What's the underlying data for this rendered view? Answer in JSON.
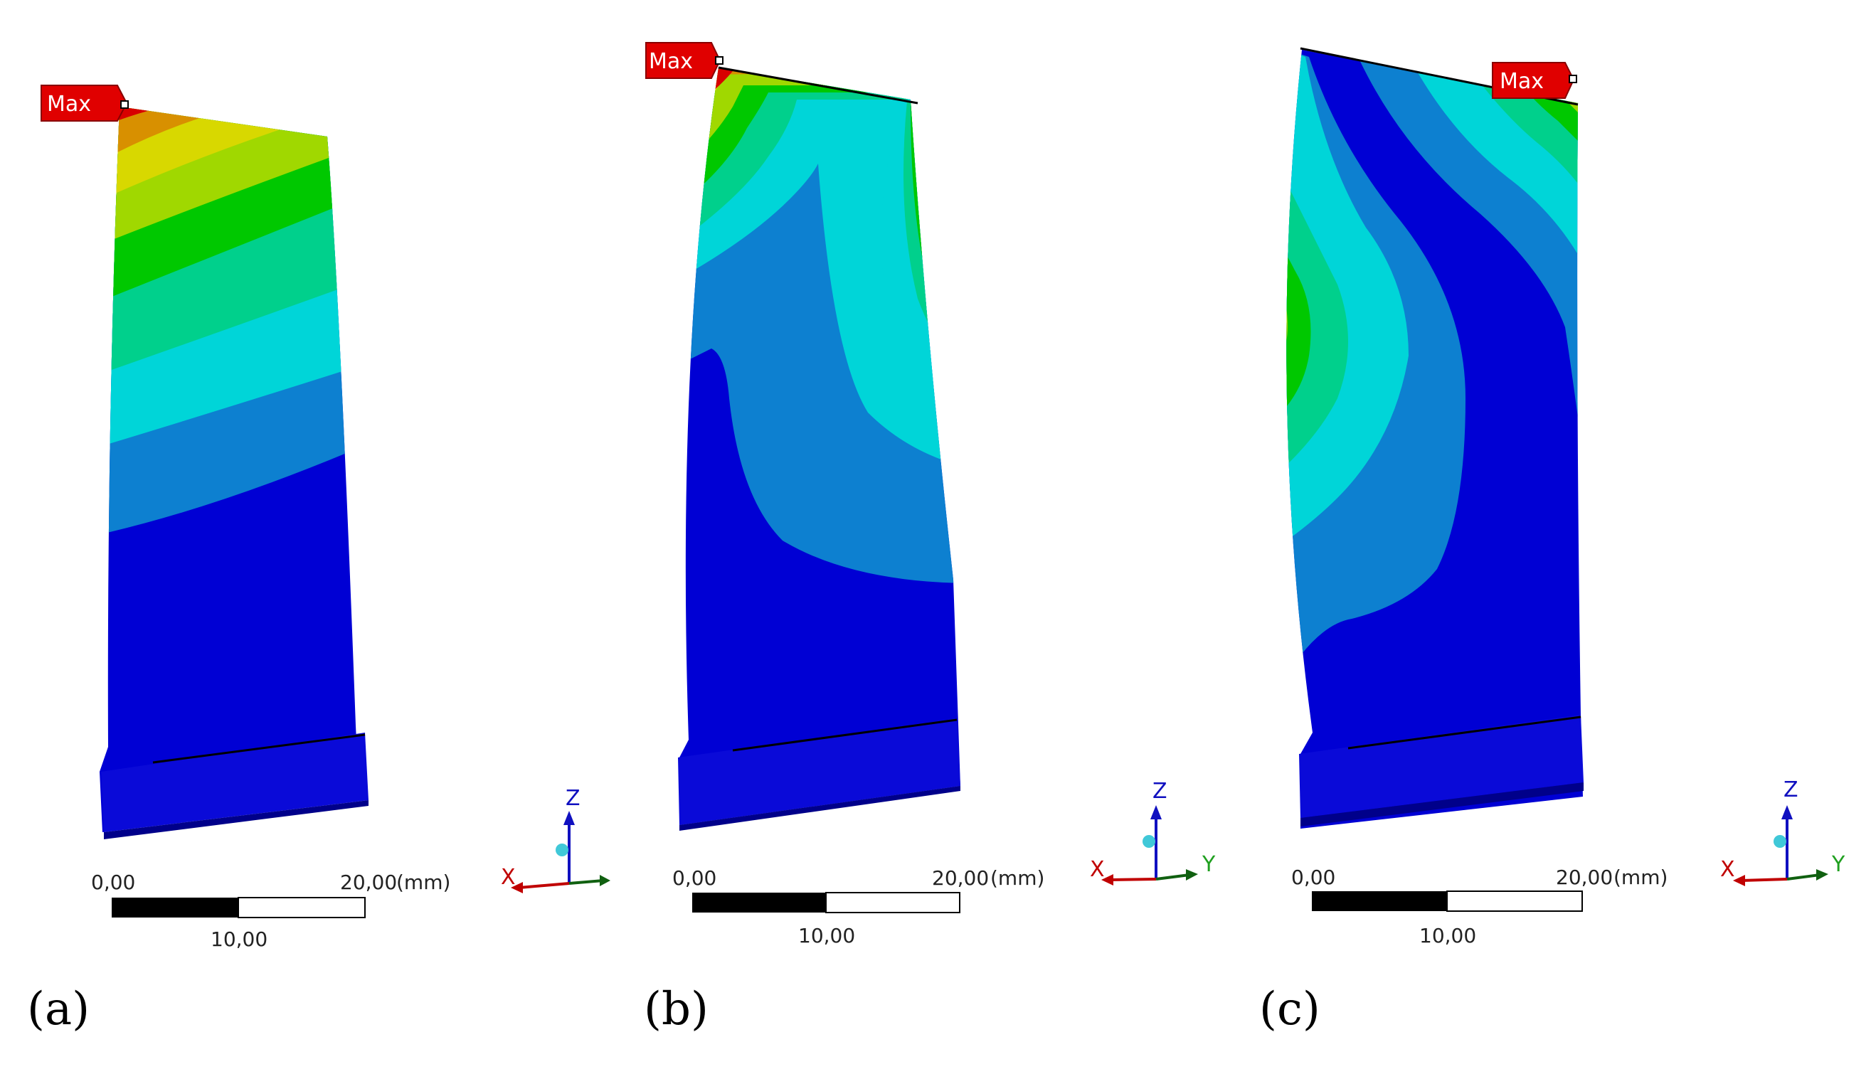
{
  "panels": [
    {
      "caption": "(a)",
      "max_label": "Max",
      "scale": {
        "start": "0,00",
        "end": "20,00",
        "unit": "(mm)",
        "mid": "10,00"
      },
      "triad": {
        "z": "Z",
        "x": "X",
        "y": ""
      }
    },
    {
      "caption": "(b)",
      "max_label": "Max",
      "scale": {
        "start": "0,00",
        "end": "20,00",
        "unit": "(mm)",
        "mid": "10,00"
      },
      "triad": {
        "z": "Z",
        "x": "X",
        "y": "Y"
      }
    },
    {
      "caption": "(c)",
      "max_label": "Max",
      "scale": {
        "start": "0,00",
        "end": "20,00",
        "unit": "(mm)",
        "mid": "10,00"
      },
      "triad": {
        "z": "Z",
        "x": "X",
        "y": "Y"
      }
    }
  ],
  "contour_colors": [
    "#0000d4",
    "#0d80d0",
    "#00d5d8",
    "#00d08c",
    "#00c800",
    "#a0d800",
    "#d8d800",
    "#d89000",
    "#d80000"
  ],
  "colors": {
    "max_flag": "#e00000",
    "triad_z": "#1010c0",
    "triad_x": "#c00000",
    "triad_y": "#106010",
    "triad_center": "#40c8d8"
  }
}
